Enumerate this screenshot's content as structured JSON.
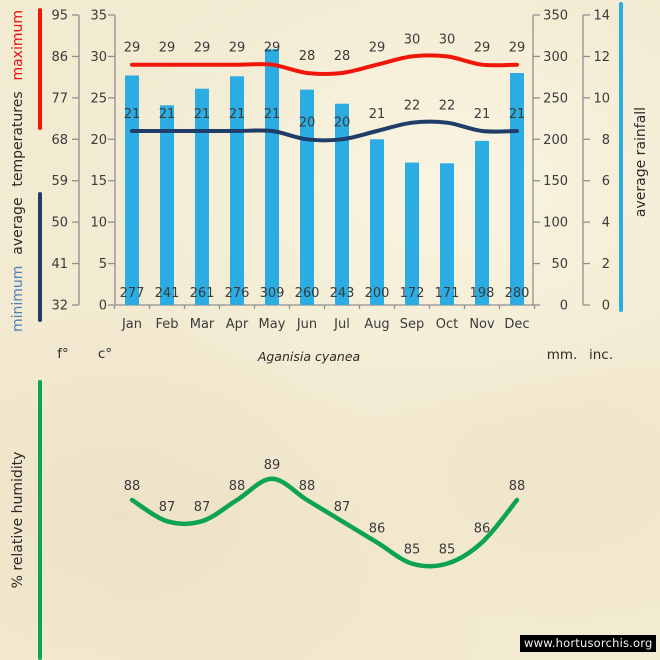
{
  "subtitle": "Aganisia cyanea",
  "watermark": "www.hortusorchis.org",
  "axis_titles": {
    "temperature_parts": {
      "minimum": "minimum",
      "average": "average",
      "temperatures": "temperatures",
      "maximum": "maximum"
    },
    "rainfall": "average rainfall",
    "humidity": "% relative humidity"
  },
  "unit_labels": {
    "fahrenheit": "f°",
    "celsius": "c°",
    "millimeters": "mm.",
    "inches": "inc."
  },
  "colors": {
    "background": "#f2ead1",
    "bar": "#2bace2",
    "max_line": "#f0170a",
    "min_line": "#1f3d68",
    "humidity_line": "#0da351",
    "min_text": "#4f81bd",
    "max_text": "#e8100c",
    "axis_line": "#8f8f8f",
    "text": "#3b3b3b",
    "watermark_bg": "#000000",
    "watermark_text": "#f5f5f5"
  },
  "chart_data": [
    {
      "type": "bar",
      "title": "climate: average temperatures and rainfall",
      "subtitle": "Aganisia cyanea",
      "categories": [
        "Jan",
        "Feb",
        "Mar",
        "Apr",
        "May",
        "Jun",
        "Jul",
        "Aug",
        "Sep",
        "Oct",
        "Nov",
        "Dec"
      ],
      "series": [
        {
          "name": "average rainfall",
          "type": "bar",
          "unit": "mm",
          "color": "#2bace2",
          "values": [
            277,
            241,
            261,
            276,
            309,
            260,
            243,
            200,
            172,
            171,
            198,
            280
          ]
        },
        {
          "name": "maximum temperature",
          "type": "line",
          "unit": "c",
          "color": "#f0170a",
          "values": [
            29,
            29,
            29,
            29,
            29,
            28,
            28,
            29,
            30,
            30,
            29,
            29
          ]
        },
        {
          "name": "minimum temperature",
          "type": "line",
          "unit": "c",
          "color": "#1f3d68",
          "values": [
            21,
            21,
            21,
            21,
            21,
            20,
            20,
            21,
            22,
            22,
            21,
            21
          ]
        }
      ],
      "axis_ticks": {
        "fahrenheit": [
          95,
          86,
          77,
          68,
          59,
          50,
          41,
          32
        ],
        "celsius": [
          35,
          30,
          25,
          20,
          15,
          10,
          5,
          0
        ],
        "millimeters": [
          350,
          300,
          250,
          200,
          150,
          100,
          50,
          0
        ],
        "inches": [
          14,
          12,
          10,
          8,
          6,
          4,
          2,
          0
        ]
      },
      "ylim_celsius": [
        0,
        35
      ],
      "ylim_millimeters": [
        0,
        350
      ],
      "grid": false
    },
    {
      "type": "line",
      "title": "% relative humidity",
      "categories": [
        "Jan",
        "Feb",
        "Mar",
        "Apr",
        "May",
        "Jun",
        "Jul",
        "Aug",
        "Sep",
        "Oct",
        "Nov",
        "Dec"
      ],
      "series": [
        {
          "name": "% relative humidity",
          "color": "#0da351",
          "values": [
            88,
            87,
            87,
            88,
            89,
            88,
            87,
            86,
            85,
            85,
            86,
            88
          ]
        }
      ],
      "ylim": [
        84,
        90
      ]
    }
  ]
}
